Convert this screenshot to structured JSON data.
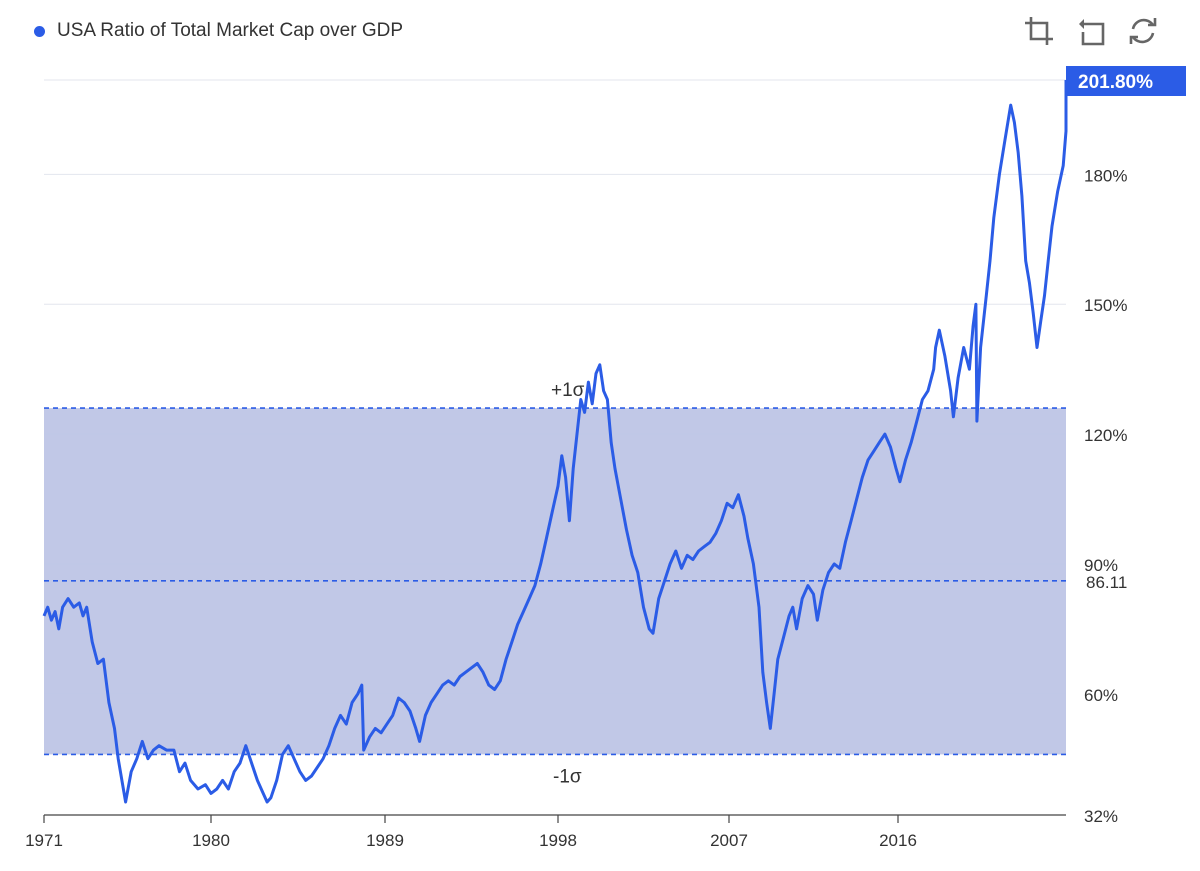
{
  "legend": {
    "label": "USA Ratio of Total Market Cap over GDP",
    "color": "#2b5ce6"
  },
  "toolbar": [
    {
      "name": "zoom-area-icon",
      "title": "Area zoom"
    },
    {
      "name": "zoom-reset-icon",
      "title": "Zoom reset"
    },
    {
      "name": "restore-icon",
      "title": "Restore"
    }
  ],
  "chart_data": {
    "type": "line",
    "title": "USA Ratio of Total Market Cap over GDP",
    "xlabel": "",
    "ylabel": "",
    "xlim": [
      1971.0,
      2024.5
    ],
    "ylim": [
      32,
      201.8
    ],
    "x_ticks": [
      "1971",
      "1980",
      "1989",
      "1998",
      "2007",
      "2016"
    ],
    "x_tick_values": [
      1971,
      1980,
      1989,
      1998,
      2007,
      2016
    ],
    "y_ticks": [
      "32%",
      "60%",
      "90%",
      "120%",
      "150%",
      "180%"
    ],
    "y_tick_values": [
      32,
      60,
      90,
      120,
      150,
      180
    ],
    "series": [
      {
        "name": "USA Ratio of Total Market Cap over GDP",
        "color": "#2b5ce6",
        "points": [
          [
            1971.0,
            78
          ],
          [
            1971.2,
            80
          ],
          [
            1971.4,
            77
          ],
          [
            1971.6,
            79
          ],
          [
            1971.8,
            75
          ],
          [
            1972.0,
            80
          ],
          [
            1972.3,
            82
          ],
          [
            1972.6,
            80
          ],
          [
            1972.9,
            81
          ],
          [
            1973.1,
            78
          ],
          [
            1973.3,
            80
          ],
          [
            1973.6,
            72
          ],
          [
            1973.9,
            67
          ],
          [
            1974.2,
            68
          ],
          [
            1974.5,
            58
          ],
          [
            1974.8,
            52
          ],
          [
            1975.0,
            45
          ],
          [
            1975.2,
            40
          ],
          [
            1975.4,
            35
          ],
          [
            1975.7,
            42
          ],
          [
            1976.0,
            45
          ],
          [
            1976.3,
            49
          ],
          [
            1976.6,
            45
          ],
          [
            1976.9,
            47
          ],
          [
            1977.2,
            48
          ],
          [
            1977.6,
            47
          ],
          [
            1978.0,
            47
          ],
          [
            1978.3,
            42
          ],
          [
            1978.6,
            44
          ],
          [
            1978.9,
            40
          ],
          [
            1979.3,
            38
          ],
          [
            1979.7,
            39
          ],
          [
            1980.0,
            37
          ],
          [
            1980.3,
            38
          ],
          [
            1980.6,
            40
          ],
          [
            1980.9,
            38
          ],
          [
            1981.2,
            42
          ],
          [
            1981.5,
            44
          ],
          [
            1981.8,
            48
          ],
          [
            1982.1,
            44
          ],
          [
            1982.4,
            40
          ],
          [
            1982.7,
            37
          ],
          [
            1982.9,
            35
          ],
          [
            1983.1,
            36
          ],
          [
            1983.4,
            40
          ],
          [
            1983.7,
            46
          ],
          [
            1984.0,
            48
          ],
          [
            1984.3,
            45
          ],
          [
            1984.6,
            42
          ],
          [
            1984.9,
            40
          ],
          [
            1985.2,
            41
          ],
          [
            1985.5,
            43
          ],
          [
            1985.8,
            45
          ],
          [
            1986.1,
            48
          ],
          [
            1986.4,
            52
          ],
          [
            1986.7,
            55
          ],
          [
            1987.0,
            53
          ],
          [
            1987.3,
            58
          ],
          [
            1987.6,
            60
          ],
          [
            1987.8,
            62
          ],
          [
            1987.9,
            47
          ],
          [
            1988.2,
            50
          ],
          [
            1988.5,
            52
          ],
          [
            1988.8,
            51
          ],
          [
            1989.1,
            53
          ],
          [
            1989.4,
            55
          ],
          [
            1989.7,
            59
          ],
          [
            1990.0,
            58
          ],
          [
            1990.3,
            56
          ],
          [
            1990.6,
            52
          ],
          [
            1990.8,
            49
          ],
          [
            1991.1,
            55
          ],
          [
            1991.4,
            58
          ],
          [
            1991.7,
            60
          ],
          [
            1992.0,
            62
          ],
          [
            1992.3,
            63
          ],
          [
            1992.6,
            62
          ],
          [
            1992.9,
            64
          ],
          [
            1993.2,
            65
          ],
          [
            1993.5,
            66
          ],
          [
            1993.8,
            67
          ],
          [
            1994.1,
            65
          ],
          [
            1994.4,
            62
          ],
          [
            1994.7,
            61
          ],
          [
            1995.0,
            63
          ],
          [
            1995.3,
            68
          ],
          [
            1995.6,
            72
          ],
          [
            1995.9,
            76
          ],
          [
            1996.2,
            79
          ],
          [
            1996.5,
            82
          ],
          [
            1996.8,
            85
          ],
          [
            1997.1,
            90
          ],
          [
            1997.4,
            96
          ],
          [
            1997.7,
            102
          ],
          [
            1998.0,
            108
          ],
          [
            1998.2,
            115
          ],
          [
            1998.4,
            110
          ],
          [
            1998.6,
            100
          ],
          [
            1998.8,
            112
          ],
          [
            1999.0,
            120
          ],
          [
            1999.2,
            128
          ],
          [
            1999.4,
            125
          ],
          [
            1999.6,
            132
          ],
          [
            1999.8,
            127
          ],
          [
            2000.0,
            134
          ],
          [
            2000.2,
            136
          ],
          [
            2000.4,
            130
          ],
          [
            2000.6,
            128
          ],
          [
            2000.8,
            118
          ],
          [
            2001.0,
            112
          ],
          [
            2001.3,
            105
          ],
          [
            2001.6,
            98
          ],
          [
            2001.9,
            92
          ],
          [
            2002.2,
            88
          ],
          [
            2002.5,
            80
          ],
          [
            2002.8,
            75
          ],
          [
            2003.0,
            74
          ],
          [
            2003.3,
            82
          ],
          [
            2003.6,
            86
          ],
          [
            2003.9,
            90
          ],
          [
            2004.2,
            93
          ],
          [
            2004.5,
            89
          ],
          [
            2004.8,
            92
          ],
          [
            2005.1,
            91
          ],
          [
            2005.4,
            93
          ],
          [
            2005.7,
            94
          ],
          [
            2006.0,
            95
          ],
          [
            2006.3,
            97
          ],
          [
            2006.6,
            100
          ],
          [
            2006.9,
            104
          ],
          [
            2007.2,
            103
          ],
          [
            2007.5,
            106
          ],
          [
            2007.8,
            101
          ],
          [
            2008.0,
            96
          ],
          [
            2008.3,
            90
          ],
          [
            2008.6,
            80
          ],
          [
            2008.8,
            65
          ],
          [
            2009.0,
            58
          ],
          [
            2009.2,
            52
          ],
          [
            2009.4,
            60
          ],
          [
            2009.6,
            68
          ],
          [
            2009.9,
            73
          ],
          [
            2010.2,
            78
          ],
          [
            2010.4,
            80
          ],
          [
            2010.6,
            75
          ],
          [
            2010.9,
            82
          ],
          [
            2011.2,
            85
          ],
          [
            2011.5,
            83
          ],
          [
            2011.7,
            77
          ],
          [
            2012.0,
            84
          ],
          [
            2012.3,
            88
          ],
          [
            2012.6,
            90
          ],
          [
            2012.9,
            89
          ],
          [
            2013.2,
            95
          ],
          [
            2013.5,
            100
          ],
          [
            2013.8,
            105
          ],
          [
            2014.1,
            110
          ],
          [
            2014.4,
            114
          ],
          [
            2014.7,
            116
          ],
          [
            2015.0,
            118
          ],
          [
            2015.3,
            120
          ],
          [
            2015.6,
            117
          ],
          [
            2015.9,
            112
          ],
          [
            2016.1,
            109
          ],
          [
            2016.4,
            114
          ],
          [
            2016.7,
            118
          ],
          [
            2017.0,
            123
          ],
          [
            2017.3,
            128
          ],
          [
            2017.6,
            130
          ],
          [
            2017.9,
            135
          ],
          [
            2018.0,
            140
          ],
          [
            2018.2,
            144
          ],
          [
            2018.5,
            138
          ],
          [
            2018.8,
            130
          ],
          [
            2018.95,
            124
          ],
          [
            2019.2,
            133
          ],
          [
            2019.5,
            140
          ],
          [
            2019.8,
            135
          ],
          [
            2020.0,
            145
          ],
          [
            2020.15,
            150
          ],
          [
            2020.2,
            123
          ],
          [
            2020.4,
            140
          ],
          [
            2020.7,
            152
          ],
          [
            2020.9,
            160
          ],
          [
            2021.1,
            170
          ],
          [
            2021.4,
            180
          ],
          [
            2021.7,
            188
          ],
          [
            2022.0,
            196
          ],
          [
            2022.2,
            192
          ],
          [
            2022.4,
            185
          ],
          [
            2022.6,
            175
          ],
          [
            2022.8,
            160
          ],
          [
            2023.0,
            155
          ],
          [
            2023.2,
            148
          ],
          [
            2023.4,
            140
          ],
          [
            2023.6,
            146
          ],
          [
            2023.8,
            152
          ],
          [
            2024.0,
            160
          ],
          [
            2024.2,
            168
          ],
          [
            2024.5,
            176
          ],
          [
            2024.8,
            182
          ],
          [
            2025.0,
            190
          ],
          [
            2025.2,
            201.8
          ]
        ]
      }
    ],
    "reference_lines": [
      {
        "label": "86.11",
        "value": 86.11
      },
      {
        "label": "+1σ",
        "value": 126
      },
      {
        "label": "-1σ",
        "value": 46
      }
    ],
    "band": {
      "from": 46,
      "to": 126,
      "color": "#bec5e6"
    },
    "last_value_label": "201.80%"
  }
}
